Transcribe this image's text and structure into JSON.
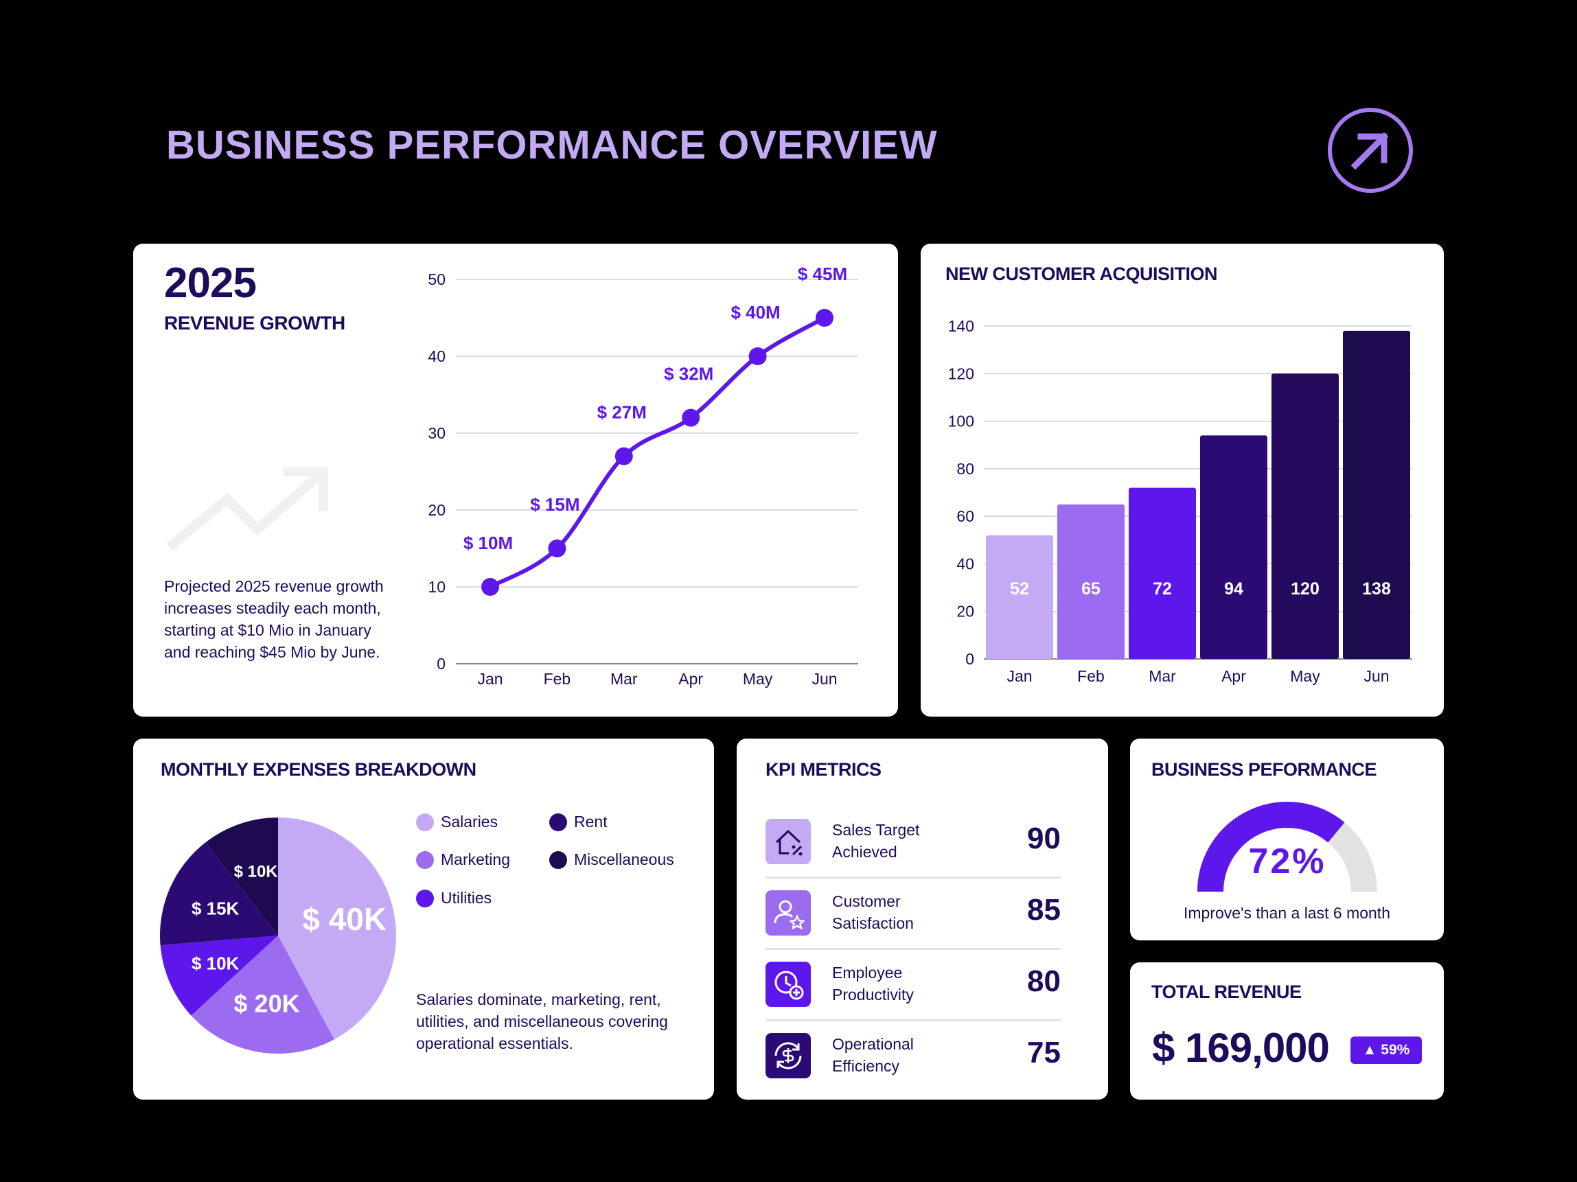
{
  "page": {
    "title": "BUSINESS PERFORMANCE OVERVIEW",
    "corner_icon": "arrow-up-right-circle-icon"
  },
  "revenue": {
    "year": "2025",
    "subtitle": "REVENUE GROWTH",
    "description": "Projected 2025 revenue growth increases steadily each month, starting at $10 Mio in January and reaching $45 Mio by June.",
    "trend_icon": "trending-up-icon"
  },
  "customers": {
    "title": "NEW CUSTOMER ACQUISITION"
  },
  "expenses": {
    "title": "MONTHLY  EXPENSES BREAKDOWN",
    "description": "Salaries dominate, marketing, rent, utilities, and miscellaneous covering operational essentials."
  },
  "kpi": {
    "title": "KPI METRICS",
    "rows": [
      {
        "label": "Sales Target Achieved",
        "value": "90",
        "icon": "house-percent-icon",
        "color": "#c4aaf5"
      },
      {
        "label": "Customer Satisfaction",
        "value": "85",
        "icon": "user-star-icon",
        "color": "#9b6cf0"
      },
      {
        "label": "Employee Productivity",
        "value": "80",
        "icon": "clock-plus-icon",
        "color": "#5d17eb"
      },
      {
        "label": "Operational Efficiency",
        "value": "75",
        "icon": "dollar-cycle-icon",
        "color": "#2c0a73"
      }
    ]
  },
  "performance": {
    "title": "BUSINESS PEFORMANCE",
    "percent_label": "72%",
    "percent": 72,
    "note": "Improve's than a last 6 month"
  },
  "total": {
    "title": "TOTAL REVENUE",
    "value": "$ 169,000",
    "badge": "▲ 59%"
  },
  "colors": {
    "light": "#c4aaf5",
    "medium": "#9b6cf0",
    "bright": "#5d17eb",
    "deep": "#2c0a73",
    "darker": "#240a5c",
    "darkest": "#1e0b4f",
    "grey": "#e2e2e2"
  },
  "chart_data": [
    {
      "type": "line",
      "title": "REVENUE GROWTH",
      "categories": [
        "Jan",
        "Feb",
        "Mar",
        "Apr",
        "May",
        "Jun"
      ],
      "values": [
        10,
        15,
        27,
        32,
        40,
        45
      ],
      "data_labels": [
        "$ 10M",
        "$ 15M",
        "$ 27M",
        "$ 32M",
        "$ 40M",
        "$ 45M"
      ],
      "ylim": [
        0,
        50
      ],
      "yticks": [
        0,
        10,
        20,
        30,
        40,
        50
      ],
      "grid": true
    },
    {
      "type": "bar",
      "title": "NEW CUSTOMER ACQUISITION",
      "categories": [
        "Jan",
        "Feb",
        "Mar",
        "Apr",
        "May",
        "Jun"
      ],
      "values": [
        52,
        65,
        72,
        94,
        120,
        138
      ],
      "ylim": [
        0,
        140
      ],
      "yticks": [
        0,
        20,
        40,
        60,
        80,
        100,
        120,
        140
      ],
      "grid": true
    },
    {
      "type": "pie",
      "title": "MONTHLY  EXPENSES BREAKDOWN",
      "categories": [
        "Salaries",
        "Marketing",
        "Utilities",
        "Rent",
        "Miscellaneous"
      ],
      "values": [
        40,
        20,
        10,
        15,
        10
      ],
      "data_labels": [
        "$ 40K",
        "$ 20K",
        "$ 10K",
        "$ 15K",
        "$ 10K"
      ],
      "legend": "right"
    }
  ]
}
